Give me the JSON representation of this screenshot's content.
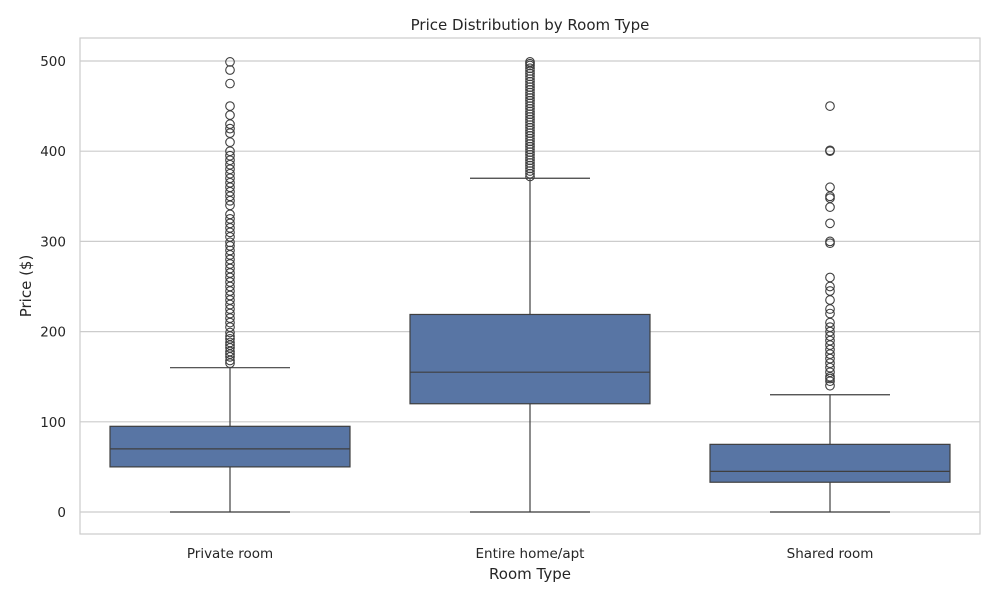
{
  "chart_data": {
    "type": "box",
    "title": "Price Distribution by Room Type",
    "xlabel": "Room Type",
    "ylabel": "Price ($)",
    "ylim": [
      -25,
      525
    ],
    "yticks": [
      0,
      100,
      200,
      300,
      400,
      500
    ],
    "grid": true,
    "colors": {
      "box": "#5875a4",
      "line": "#3f3f3f",
      "grid": "#cccccc",
      "frame": "#cccccc"
    },
    "categories": [
      "Private room",
      "Entire home/apt",
      "Shared room"
    ],
    "boxes": [
      {
        "category": "Private room",
        "min": 0,
        "q1": 50,
        "median": 70,
        "q3": 95,
        "max": 160,
        "outliers": [
          165,
          168,
          172,
          175,
          178,
          182,
          185,
          188,
          192,
          195,
          199,
          205,
          210,
          215,
          220,
          225,
          230,
          235,
          240,
          245,
          250,
          255,
          260,
          265,
          270,
          275,
          280,
          285,
          290,
          295,
          299,
          305,
          310,
          315,
          320,
          325,
          330,
          340,
          345,
          350,
          355,
          360,
          365,
          370,
          375,
          380,
          385,
          390,
          395,
          400,
          410,
          420,
          425,
          430,
          440,
          450,
          475,
          490,
          499
        ]
      },
      {
        "category": "Entire home/apt",
        "min": 0,
        "q1": 120,
        "median": 155,
        "q3": 219,
        "max": 370,
        "outliers": [
          372,
          375,
          378,
          381,
          384,
          387,
          390,
          393,
          396,
          399,
          402,
          405,
          408,
          411,
          414,
          417,
          420,
          423,
          426,
          429,
          432,
          435,
          438,
          441,
          444,
          447,
          450,
          453,
          456,
          459,
          462,
          465,
          468,
          471,
          474,
          477,
          480,
          483,
          486,
          489,
          492,
          495,
          497,
          499
        ]
      },
      {
        "category": "Shared room",
        "min": 0,
        "q1": 33,
        "median": 45,
        "q3": 75,
        "max": 130,
        "outliers": [
          140,
          145,
          148,
          150,
          155,
          160,
          165,
          170,
          175,
          180,
          185,
          190,
          195,
          200,
          205,
          210,
          220,
          225,
          235,
          245,
          250,
          260,
          298,
          300,
          320,
          338,
          348,
          350,
          360,
          400,
          401,
          450
        ]
      }
    ]
  }
}
